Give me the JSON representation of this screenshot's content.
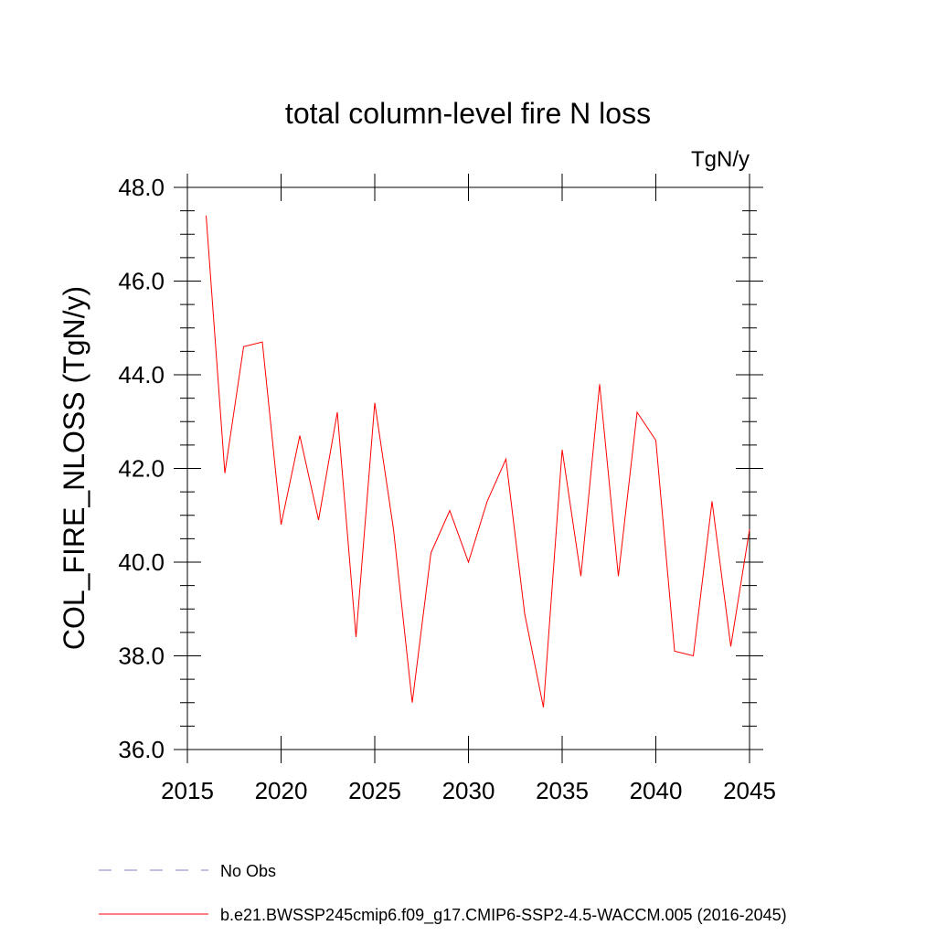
{
  "chart_data": {
    "type": "line",
    "title": "total column-level fire N loss",
    "units_label": "TgN/y",
    "ylabel": "COL_FIRE_NLOSS  (TgN/y)",
    "xlabel": "",
    "xlim": [
      2015,
      2045
    ],
    "ylim": [
      36.0,
      48.0
    ],
    "xticks": [
      "2015",
      "2020",
      "2025",
      "2030",
      "2035",
      "2040",
      "2045"
    ],
    "yticks": [
      "36.0",
      "38.0",
      "40.0",
      "42.0",
      "44.0",
      "46.0",
      "48.0"
    ],
    "grid": false,
    "legend": [
      {
        "label": "No Obs",
        "style": "dashed",
        "color": "#8080c0"
      },
      {
        "label": "b.e21.BWSSP245cmip6.f09_g17.CMIP6-SSP2-4.5-WACCM.005 (2016-2045)",
        "style": "solid",
        "color": "#ff0000"
      }
    ],
    "series": [
      {
        "color": "#ff0000",
        "x": [
          2016,
          2017,
          2018,
          2019,
          2020,
          2021,
          2022,
          2023,
          2024,
          2025,
          2026,
          2027,
          2028,
          2029,
          2030,
          2031,
          2032,
          2033,
          2034,
          2035,
          2036,
          2037,
          2038,
          2039,
          2040,
          2041,
          2042,
          2043,
          2044,
          2045
        ],
        "values": [
          47.4,
          41.9,
          44.6,
          44.7,
          40.8,
          42.7,
          40.9,
          43.2,
          38.4,
          43.4,
          40.7,
          37.0,
          40.2,
          41.1,
          40.0,
          41.3,
          42.2,
          38.9,
          36.9,
          42.4,
          39.7,
          43.8,
          39.7,
          43.2,
          42.6,
          38.1,
          38.0,
          41.3,
          38.2,
          40.7
        ]
      }
    ]
  }
}
